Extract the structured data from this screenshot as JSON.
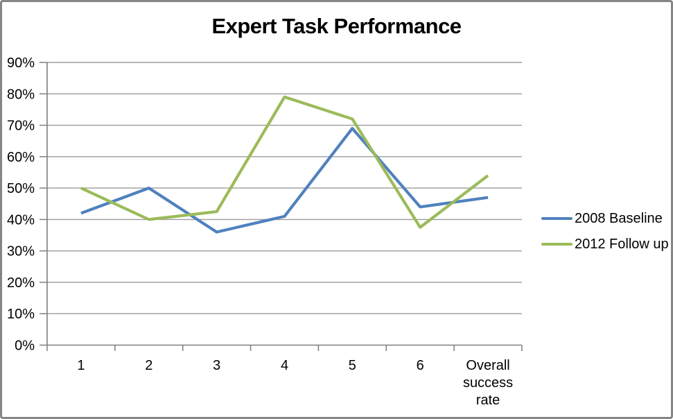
{
  "chart_data": {
    "type": "line",
    "title": "Expert Task Performance",
    "categories": [
      "1",
      "2",
      "3",
      "4",
      "5",
      "6",
      "Overall success rate"
    ],
    "series": [
      {
        "name": "2008 Baseline",
        "color": "#4F81BD",
        "values": [
          42,
          50,
          36,
          41,
          69,
          44,
          47
        ]
      },
      {
        "name": "2012 Follow up",
        "color": "#9BBB59",
        "values": [
          50,
          40,
          42.5,
          79,
          72,
          37.5,
          54
        ]
      }
    ],
    "ylim": [
      0,
      90
    ],
    "y_tick_step": 10,
    "y_tick_labels": [
      "0%",
      "10%",
      "20%",
      "30%",
      "40%",
      "50%",
      "60%",
      "70%",
      "80%",
      "90%"
    ],
    "xlabel": "",
    "ylabel": "",
    "grid": true,
    "legend_position": "right"
  },
  "colors": {
    "background": "#FFFFFF",
    "border": "#858585",
    "axis": "#7F7F7F",
    "gridline": "#9B9B9B",
    "text": "#000000"
  }
}
